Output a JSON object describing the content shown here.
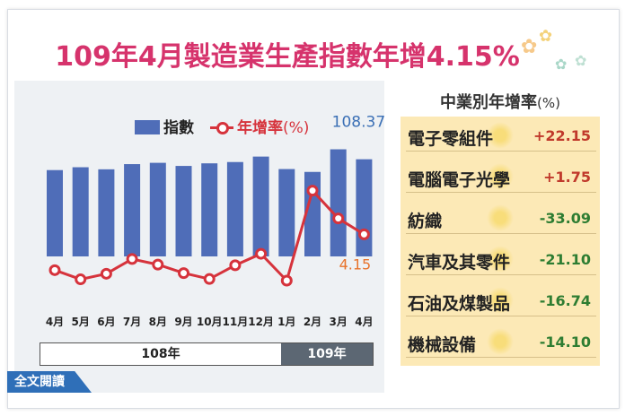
{
  "title": "109年4月製造業生產指數年增4.15%",
  "legend": {
    "index_label": "指數",
    "growth_label": "年增率",
    "growth_unit": "(%)"
  },
  "chart_data": {
    "type": "bar",
    "title": "109年4月製造業生產指數年增4.15%",
    "categories": [
      "4月",
      "5月",
      "6月",
      "7月",
      "8月",
      "9月",
      "10月",
      "11月",
      "12月",
      "1月",
      "2月",
      "3月",
      "4月"
    ],
    "series": [
      {
        "name": "指數",
        "type": "bar",
        "values": [
          104.2,
          105.3,
          104.5,
          106.5,
          107.0,
          105.8,
          106.8,
          107.3,
          109.4,
          104.6,
          103.5,
          112.2,
          108.37
        ]
      },
      {
        "name": "年增率",
        "type": "line",
        "values": [
          -6.8,
          -9.6,
          -7.9,
          -3.4,
          -5.1,
          -7.7,
          -9.5,
          -5.3,
          -1.8,
          -10.0,
          17.5,
          9.0,
          4.15
        ]
      }
    ],
    "year_groups": [
      {
        "label": "108年",
        "count": 9
      },
      {
        "label": "109年",
        "count": 4
      }
    ],
    "annotations": [
      {
        "label": "108.37"
      },
      {
        "label": "4.15"
      }
    ]
  },
  "side": {
    "title": "中業別年增率",
    "unit": "(%)",
    "rows": [
      {
        "name": "電子零組件",
        "value": "+22.15",
        "sign": "pos"
      },
      {
        "name": "電腦電子光學",
        "value": "+1.75",
        "sign": "pos"
      },
      {
        "name": "紡織",
        "value": "-33.09",
        "sign": "neg"
      },
      {
        "name": "汽車及其零件",
        "value": "-21.10",
        "sign": "neg"
      },
      {
        "name": "石油及煤製品",
        "value": "-16.74",
        "sign": "neg"
      },
      {
        "name": "機械設備",
        "value": "-14.10",
        "sign": "neg"
      }
    ]
  },
  "read_all": "全文閱讀",
  "colors": {
    "title": "#d6336c",
    "bar": "#4f6db8",
    "line": "#d6333c",
    "accent": "#3a6fb5"
  }
}
